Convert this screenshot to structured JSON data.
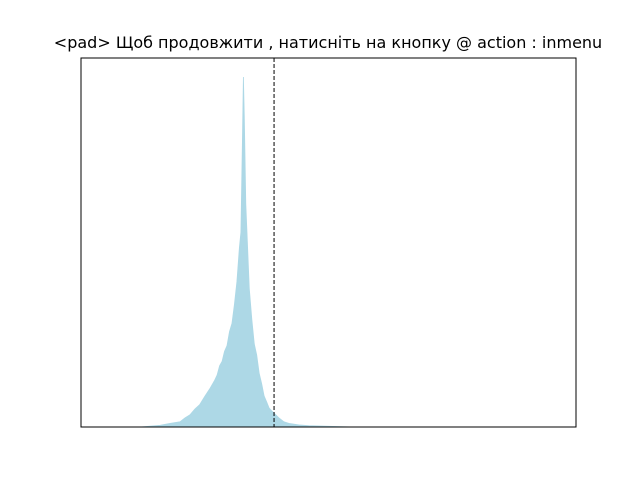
{
  "chart_data": {
    "type": "area",
    "title": "<pad> Щоб продовжити , натисніть на кнопку @ action : inmenu",
    "xlabel": "",
    "ylabel": "",
    "grid": false,
    "axis_ticks": false,
    "fill_color": "#add8e6",
    "reference_line": {
      "style": "dashed",
      "color": "#000000",
      "x": 0.39
    },
    "x_range": [
      0,
      1
    ],
    "y_range": [
      0,
      1
    ],
    "series": [
      {
        "x": [
          0.12,
          0.16,
          0.18,
          0.2,
          0.21,
          0.22,
          0.23,
          0.24,
          0.25,
          0.26,
          0.27,
          0.275,
          0.28,
          0.285,
          0.29,
          0.295,
          0.3,
          0.305,
          0.31,
          0.315,
          0.32,
          0.323,
          0.326,
          0.328,
          0.33,
          0.333,
          0.336,
          0.34,
          0.345,
          0.35,
          0.355,
          0.36,
          0.365,
          0.37,
          0.375,
          0.38,
          0.385,
          0.39,
          0.4,
          0.41,
          0.42,
          0.44,
          0.46,
          0.5,
          0.55
        ],
        "y": [
          0.0,
          0.005,
          0.01,
          0.015,
          0.025,
          0.035,
          0.05,
          0.065,
          0.085,
          0.11,
          0.13,
          0.15,
          0.17,
          0.19,
          0.21,
          0.235,
          0.265,
          0.3,
          0.34,
          0.42,
          0.5,
          0.56,
          0.8,
          1.0,
          0.87,
          0.64,
          0.52,
          0.4,
          0.3,
          0.24,
          0.2,
          0.155,
          0.12,
          0.09,
          0.07,
          0.055,
          0.045,
          0.04,
          0.025,
          0.015,
          0.01,
          0.006,
          0.004,
          0.002,
          0.0
        ]
      }
    ]
  }
}
